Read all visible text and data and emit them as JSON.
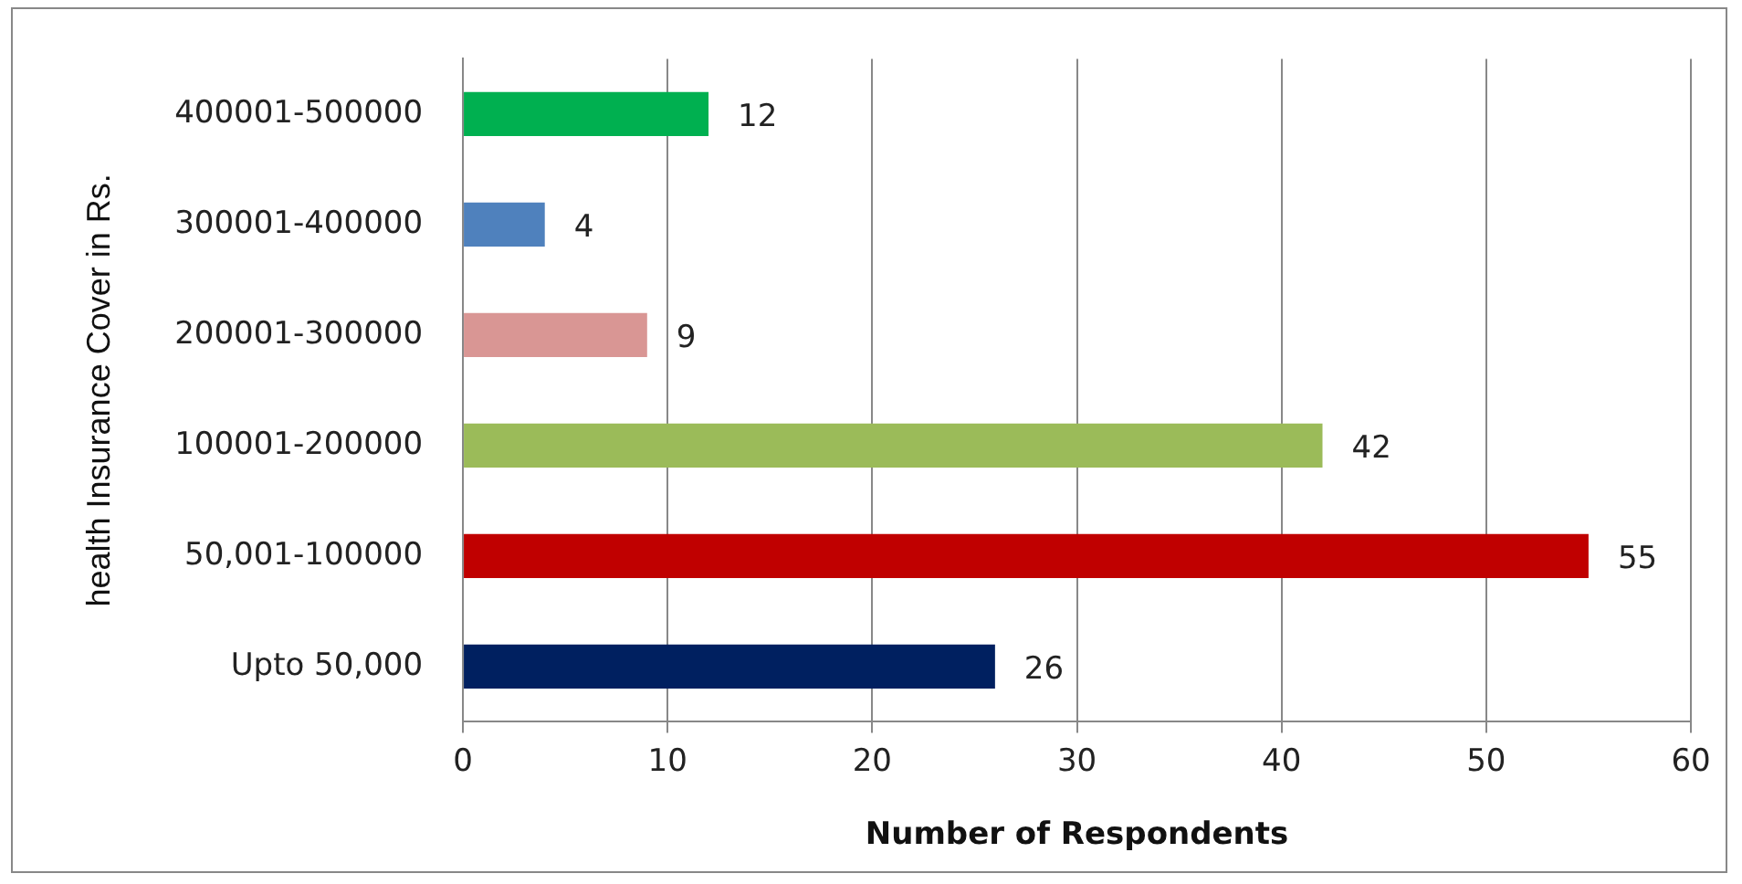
{
  "chart_data": {
    "type": "bar",
    "orientation": "horizontal",
    "xlabel": "Number of Respondents",
    "ylabel": "health Insurance Cover in Rs.",
    "categories": [
      "400001-500000",
      "300001-400000",
      "200001-300000",
      "100001-200000",
      "50,001-100000",
      "Upto 50,000"
    ],
    "values": [
      12,
      4,
      9,
      42,
      55,
      26
    ],
    "colors": [
      "#00b050",
      "#4f81bd",
      "#d99694",
      "#9bbb59",
      "#c00000",
      "#002060"
    ],
    "xlim": [
      0,
      60
    ],
    "xticks": [
      0,
      10,
      20,
      30,
      40,
      50,
      60
    ],
    "grid": "x",
    "data_labels": true,
    "legend": false
  }
}
